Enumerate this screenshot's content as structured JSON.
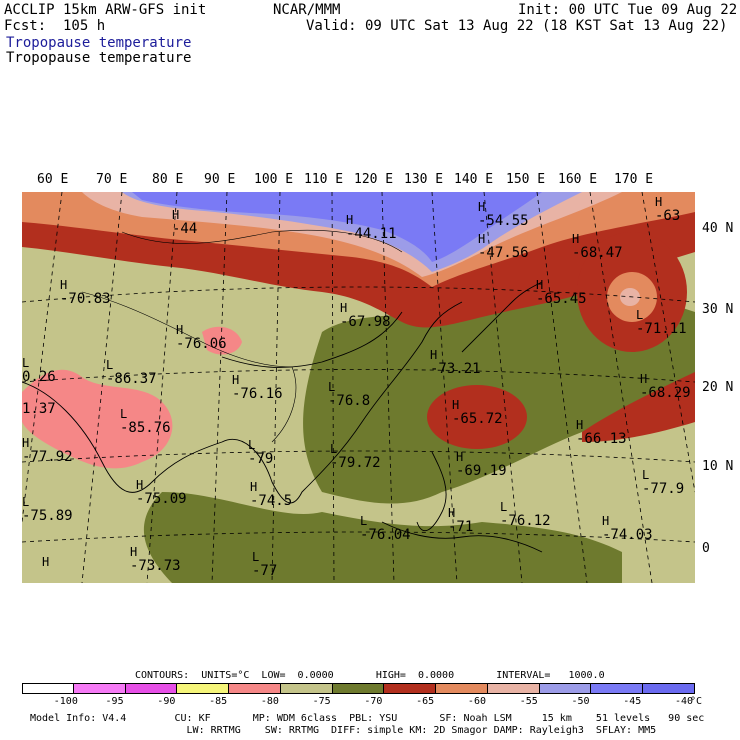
{
  "header": {
    "model": "ACCLIP 15km ARW-GFS init",
    "forecast": "Fcst:  105 h",
    "subtitle1": "Tropopause temperature",
    "subtitle2": "Tropopause temperature",
    "org": "NCAR/MMM",
    "init": "Init: 00 UTC Tue 09 Aug 22",
    "valid": "Valid: 09 UTC Sat 13 Aug 22 (18 KST Sat 13 Aug 22)"
  },
  "map": {
    "lon_labels": [
      "60 E",
      "70 E",
      "80 E",
      "90 E",
      "100 E",
      "110 E",
      "120 E",
      "130 E",
      "140 E",
      "150 E",
      "160 E",
      "170 E"
    ],
    "lat_labels": [
      "40 N",
      "30 N",
      "20 N",
      "10 N",
      "0"
    ],
    "extrema": [
      {
        "mark": "H",
        "value": "-44"
      },
      {
        "mark": "H",
        "value": "-44.11"
      },
      {
        "mark": "H",
        "value": "-54.55"
      },
      {
        "mark": "H",
        "value": "-47.56"
      },
      {
        "mark": "H",
        "value": "-63"
      },
      {
        "mark": "H",
        "value": "-68.47"
      },
      {
        "mark": "H",
        "value": "-65.45"
      },
      {
        "mark": "H",
        "value": "-70.83"
      },
      {
        "mark": "H",
        "value": "-67.98"
      },
      {
        "mark": "H",
        "value": "-76.06"
      },
      {
        "mark": "L",
        "value": "-71.11"
      },
      {
        "mark": "L",
        "value": "-86.37"
      },
      {
        "mark": "L",
        "value": "0.26"
      },
      {
        "mark": "H",
        "value": "-73.21"
      },
      {
        "mark": "H",
        "value": "-76.16"
      },
      {
        "mark": "L",
        "value": "-76.8"
      },
      {
        "mark": "H",
        "value": "-68.29"
      },
      {
        "mark": "",
        "value": "1.37"
      },
      {
        "mark": "L",
        "value": "-85.76"
      },
      {
        "mark": "H",
        "value": "-65.72"
      },
      {
        "mark": "H",
        "value": "-66.13"
      },
      {
        "mark": "H",
        "value": "-77.92"
      },
      {
        "mark": "L",
        "value": "-79"
      },
      {
        "mark": "L",
        "value": "-79.72"
      },
      {
        "mark": "H",
        "value": "-69.19"
      },
      {
        "mark": "L",
        "value": "-77.9"
      },
      {
        "mark": "H",
        "value": "-75.09"
      },
      {
        "mark": "H",
        "value": "-74.5"
      },
      {
        "mark": "L",
        "value": "-75.89"
      },
      {
        "mark": "H",
        "value": "-71"
      },
      {
        "mark": "L",
        "value": "-76.12"
      },
      {
        "mark": "H",
        "value": "-74.03"
      },
      {
        "mark": "L",
        "value": "-76.04"
      },
      {
        "mark": "H",
        "value": "-73.73"
      },
      {
        "mark": "L",
        "value": "-77"
      },
      {
        "mark": "H",
        "value": ""
      }
    ]
  },
  "contours": {
    "text": "CONTOURS:  UNITS=°C  LOW=  0.0000       HIGH=  0.0000       INTERVAL=   1000.0"
  },
  "colorbar": {
    "ticks": [
      "-100",
      "-95",
      "-90",
      "-85",
      "-80",
      "-75",
      "-70",
      "-65",
      "-60",
      "-55",
      "-50",
      "-45",
      "-40"
    ],
    "unit": "°C",
    "colors": [
      "#ffffff",
      "#f57af5",
      "#e64fe6",
      "#f5f57a",
      "#f58787",
      "#c4c48a",
      "#6e7a2e",
      "#b22f1e",
      "#e38a5e",
      "#e8b3a5",
      "#9c9ce8",
      "#7a7af5",
      "#6b6bf0"
    ]
  },
  "footer": {
    "line1": "Model Info: V4.4        CU: KF       MP: WDM 6class  PBL: YSU       SF: Noah LSM     15 km    51 levels   90 sec",
    "line2": "                          LW: RRTMG    SW: RRTMG  DIFF: simple KM: 2D Smagor DAMP: Rayleigh3  SFLAY: MM5"
  }
}
